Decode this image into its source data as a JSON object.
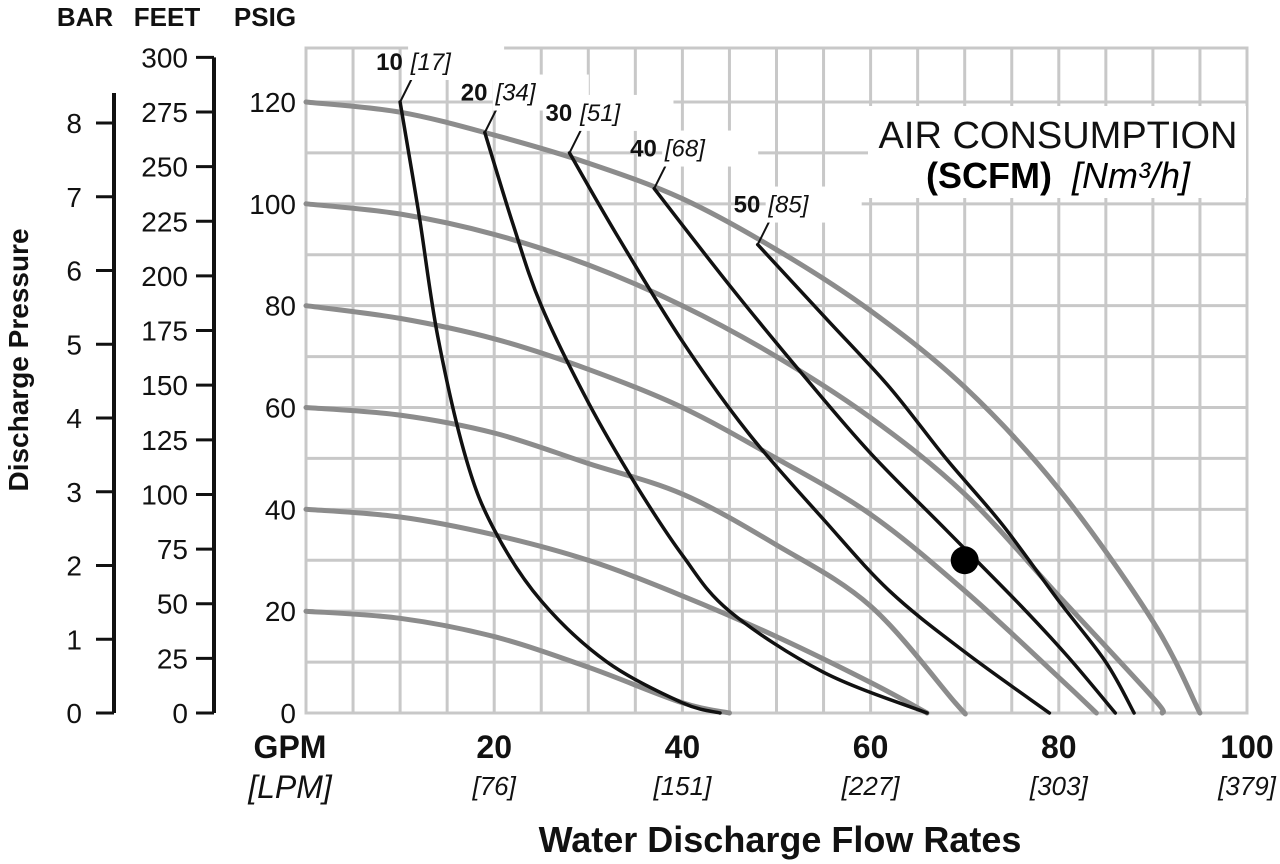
{
  "chart_data": {
    "type": "line",
    "title_line1": "AIR CONSUMPTION",
    "title_line2_bold": "(SCFM)",
    "title_line2_ital": "[Nm³/h]",
    "xlabel": "Water Discharge Flow Rates",
    "xunit_primary": "GPM",
    "xunit_secondary": "[LPM]",
    "ylabel": "Discharge Pressure",
    "axis_headers": {
      "bar": "BAR",
      "feet": "FEET",
      "psig": "PSIG"
    },
    "xlim": [
      0,
      100
    ],
    "ylim_psig": [
      0,
      130
    ],
    "grid": true,
    "x_ticks": [
      {
        "value": 20,
        "label": "20",
        "sub": "[76]"
      },
      {
        "value": 40,
        "label": "40",
        "sub": "[151]"
      },
      {
        "value": 60,
        "label": "60",
        "sub": "[227]"
      },
      {
        "value": 80,
        "label": "80",
        "sub": "[303]"
      },
      {
        "value": 100,
        "label": "100",
        "sub": "[379]"
      }
    ],
    "psig_ticks": [
      {
        "value": 0,
        "label": "0"
      },
      {
        "value": 20,
        "label": "20"
      },
      {
        "value": 40,
        "label": "40"
      },
      {
        "value": 60,
        "label": "60"
      },
      {
        "value": 80,
        "label": "80"
      },
      {
        "value": 100,
        "label": "100"
      },
      {
        "value": 120,
        "label": "120"
      }
    ],
    "feet_ticks": [
      {
        "value": 0,
        "label": "0"
      },
      {
        "value": 25,
        "label": "25"
      },
      {
        "value": 50,
        "label": "50"
      },
      {
        "value": 75,
        "label": "75"
      },
      {
        "value": 100,
        "label": "100"
      },
      {
        "value": 125,
        "label": "125"
      },
      {
        "value": 150,
        "label": "150"
      },
      {
        "value": 175,
        "label": "175"
      },
      {
        "value": 200,
        "label": "200"
      },
      {
        "value": 225,
        "label": "225"
      },
      {
        "value": 250,
        "label": "250"
      },
      {
        "value": 275,
        "label": "275"
      },
      {
        "value": 300,
        "label": "300"
      }
    ],
    "bar_ticks": [
      {
        "value": 0,
        "label": "0"
      },
      {
        "value": 1,
        "label": "1"
      },
      {
        "value": 2,
        "label": "2"
      },
      {
        "value": 3,
        "label": "3"
      },
      {
        "value": 4,
        "label": "4"
      },
      {
        "value": 5,
        "label": "5"
      },
      {
        "value": 6,
        "label": "6"
      },
      {
        "value": 7,
        "label": "7"
      },
      {
        "value": 8,
        "label": "8"
      }
    ],
    "pressure_curves": [
      {
        "color": "#8c8c8c",
        "points": [
          [
            0,
            20
          ],
          [
            10,
            18.6
          ],
          [
            20,
            15
          ],
          [
            30,
            9
          ],
          [
            40,
            2
          ],
          [
            45,
            0
          ]
        ]
      },
      {
        "color": "#8c8c8c",
        "points": [
          [
            0,
            40
          ],
          [
            10,
            38.5
          ],
          [
            20,
            35
          ],
          [
            30,
            30
          ],
          [
            40,
            23
          ],
          [
            50,
            15
          ],
          [
            60,
            6
          ],
          [
            66,
            0
          ]
        ]
      },
      {
        "color": "#8c8c8c",
        "points": [
          [
            0,
            60
          ],
          [
            10,
            58.5
          ],
          [
            20,
            55
          ],
          [
            30,
            49
          ],
          [
            40,
            43
          ],
          [
            50,
            33
          ],
          [
            60,
            21
          ],
          [
            69,
            2
          ],
          [
            70,
            0
          ]
        ]
      },
      {
        "color": "#8c8c8c",
        "points": [
          [
            0,
            80
          ],
          [
            10,
            77.5
          ],
          [
            20,
            73.5
          ],
          [
            30,
            67.5
          ],
          [
            40,
            60
          ],
          [
            50,
            50
          ],
          [
            60,
            39
          ],
          [
            70,
            24
          ],
          [
            80,
            7
          ],
          [
            84,
            0
          ]
        ]
      },
      {
        "color": "#8c8c8c",
        "points": [
          [
            0,
            100
          ],
          [
            10,
            98
          ],
          [
            20,
            94
          ],
          [
            30,
            88
          ],
          [
            40,
            80
          ],
          [
            50,
            70
          ],
          [
            60,
            58
          ],
          [
            70,
            43
          ],
          [
            80,
            23
          ],
          [
            90,
            3
          ],
          [
            91,
            0
          ]
        ]
      },
      {
        "color": "#8c8c8c",
        "points": [
          [
            0,
            120
          ],
          [
            10,
            118
          ],
          [
            20,
            113.5
          ],
          [
            30,
            108
          ],
          [
            40,
            101
          ],
          [
            50,
            91
          ],
          [
            60,
            79
          ],
          [
            70,
            64
          ],
          [
            80,
            44
          ],
          [
            90,
            18
          ],
          [
            95,
            0
          ]
        ]
      }
    ],
    "air_curves": [
      {
        "label": "10",
        "sub": "[17]",
        "color": "#111111",
        "points": [
          [
            10,
            120
          ],
          [
            12,
            98
          ],
          [
            14,
            74
          ],
          [
            17,
            50
          ],
          [
            20,
            36
          ],
          [
            25,
            22
          ],
          [
            32,
            10
          ],
          [
            40,
            2
          ],
          [
            44,
            0
          ]
        ]
      },
      {
        "label": "20",
        "sub": "[34]",
        "color": "#111111",
        "points": [
          [
            19,
            114
          ],
          [
            22,
            96
          ],
          [
            25,
            80
          ],
          [
            30,
            61
          ],
          [
            35,
            45
          ],
          [
            40,
            31
          ],
          [
            45,
            20
          ],
          [
            55,
            8
          ],
          [
            66,
            0
          ]
        ]
      },
      {
        "label": "30",
        "sub": "[51]",
        "color": "#111111",
        "points": [
          [
            28,
            110
          ],
          [
            33,
            94
          ],
          [
            40,
            73
          ],
          [
            47,
            55
          ],
          [
            55,
            38
          ],
          [
            62,
            24
          ],
          [
            70,
            12
          ],
          [
            79,
            0
          ]
        ]
      },
      {
        "label": "40",
        "sub": "[68]",
        "color": "#111111",
        "points": [
          [
            37,
            103
          ],
          [
            45,
            84
          ],
          [
            53,
            66
          ],
          [
            60,
            51
          ],
          [
            68,
            36
          ],
          [
            76,
            21
          ],
          [
            81,
            11
          ],
          [
            86,
            0
          ]
        ]
      },
      {
        "label": "50",
        "sub": "[85]",
        "color": "#111111",
        "points": [
          [
            48,
            92
          ],
          [
            55,
            78
          ],
          [
            62,
            64
          ],
          [
            68,
            50
          ],
          [
            74,
            37
          ],
          [
            80,
            22
          ],
          [
            85,
            10
          ],
          [
            88,
            0
          ]
        ]
      }
    ],
    "marker_point": {
      "x": 70,
      "y": 30
    }
  }
}
